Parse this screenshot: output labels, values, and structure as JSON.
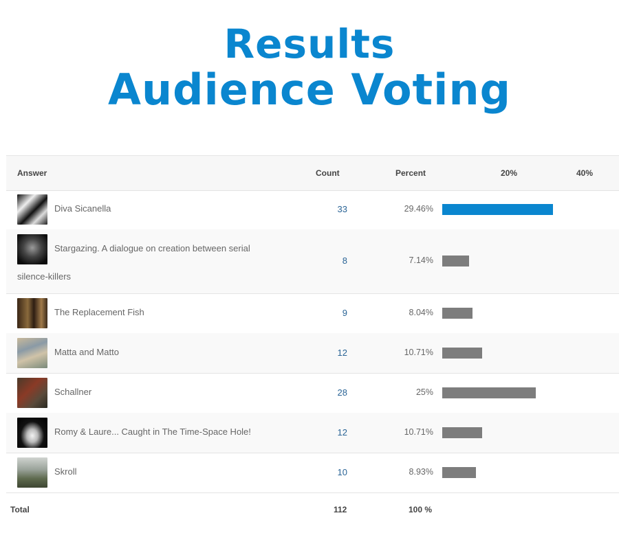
{
  "heading": {
    "line1": "Results",
    "line2": "Audience Voting"
  },
  "table": {
    "headers": {
      "answer": "Answer",
      "count": "Count",
      "percent": "Percent",
      "scale20": "20%",
      "scale40": "40%"
    },
    "rows": [
      {
        "name": "Diva Sicanella",
        "count": "33",
        "percent": "29.46%",
        "fraction": 0.2946,
        "leading": true
      },
      {
        "name": "Stargazing. A dialogue on creation between serial silence-killers",
        "count": "8",
        "percent": "7.14%",
        "fraction": 0.0714
      },
      {
        "name": "The Replacement Fish",
        "count": "9",
        "percent": "8.04%",
        "fraction": 0.0804
      },
      {
        "name": "Matta and Matto",
        "count": "12",
        "percent": "10.71%",
        "fraction": 0.1071
      },
      {
        "name": "Schallner",
        "count": "28",
        "percent": "25%",
        "fraction": 0.25
      },
      {
        "name": "Romy & Laure... Caught in The Time-Space Hole!",
        "count": "12",
        "percent": "10.71%",
        "fraction": 0.1071
      },
      {
        "name": "Skroll",
        "count": "10",
        "percent": "8.93%",
        "fraction": 0.0893
      }
    ],
    "total": {
      "label": "Total",
      "count": "112",
      "percent": "100 %"
    }
  },
  "colors": {
    "accent": "#0a86cf",
    "bar_default": "#7d7d7d"
  }
}
